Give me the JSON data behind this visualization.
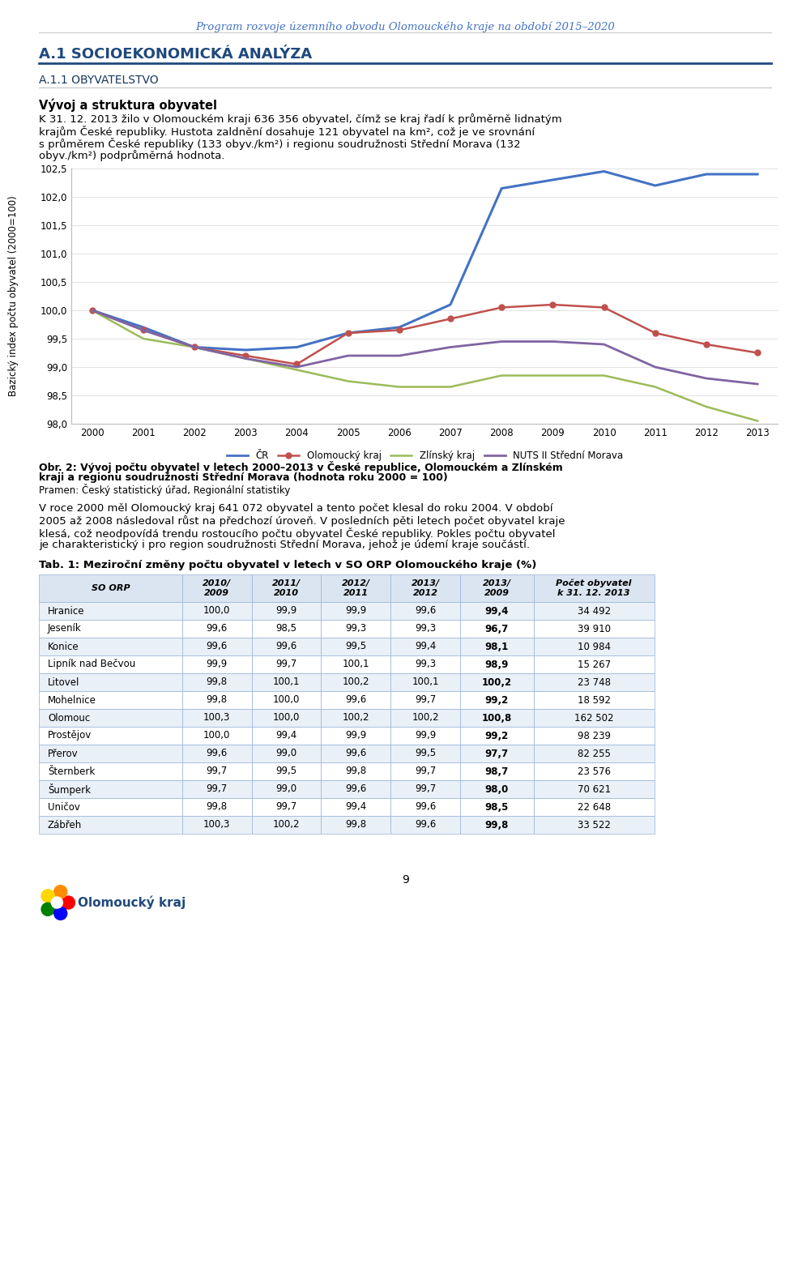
{
  "header_text": "Program rozvoje územního obvodu Olomouckého kraje na období 2015–2020",
  "section_title": "A.1 SOCIOEKONOMICKÁ ANALÝZA",
  "subsection_title": "A.1.1 OBYVATELSTVO",
  "bold_heading": "Vývoj a struktura obyvatel",
  "para1_lines": [
    "K 31. 12. 2013 žilo v Olomouckém kraji 636 356 obyvatel, čímž se kraj řadí k průměrně lidnatým",
    "krajům České republiky. Hustota zaldnění dosahuje 121 obyvatel na km², což je ve srovnání",
    "s průměrem České republiky (133 obyv./km²) i regionu soudružnosti Střední Morava (132",
    "obyv./km²) podprůměrná hodnota."
  ],
  "years": [
    2000,
    2001,
    2002,
    2003,
    2004,
    2005,
    2006,
    2007,
    2008,
    2009,
    2010,
    2011,
    2012,
    2013
  ],
  "cr": [
    100.0,
    99.7,
    99.35,
    99.3,
    99.35,
    99.6,
    99.7,
    100.1,
    102.15,
    102.3,
    102.45,
    102.2,
    102.4,
    102.4
  ],
  "olomoucky": [
    100.0,
    99.65,
    99.35,
    99.2,
    99.05,
    99.6,
    99.65,
    99.85,
    100.05,
    100.1,
    100.05,
    99.6,
    99.4,
    99.25
  ],
  "zlinsky": [
    100.0,
    99.5,
    99.35,
    99.15,
    98.95,
    98.75,
    98.65,
    98.65,
    98.85,
    98.85,
    98.85,
    98.65,
    98.3,
    98.05
  ],
  "nuts": [
    100.0,
    99.65,
    99.35,
    99.15,
    99.0,
    99.2,
    99.2,
    99.35,
    99.45,
    99.45,
    99.4,
    99.0,
    98.8,
    98.7
  ],
  "cr_color": "#4472C4",
  "olomoucky_color": "#C0504D",
  "zlinsky_color": "#9BBB59",
  "nuts_color": "#8064A2",
  "ylim": [
    98.0,
    102.5
  ],
  "yticks": [
    98.0,
    98.5,
    99.0,
    99.5,
    100.0,
    100.5,
    101.0,
    101.5,
    102.0,
    102.5
  ],
  "ylabel": "Bazický index počtu obyvatel (2000=100)",
  "caption_bold": "Obr. 2: Vývoj počtu obyvatel v letech 2000–2013 v České republice, Olomouckém a Zlínském",
  "caption_bold2": "kraji a regionu soudružnosti Střední Morava (hodnota roku 2000 = 100)",
  "caption_normal": "Pramen: Český statistický úřad, Regionální statistiky",
  "para2_lines": [
    "V roce 2000 měl Olomoucký kraj 641 072 obyvatel a tento počet klesal do roku 2004. V období",
    "2005 až 2008 následoval růst na předchozí úroveň. V posledních pěti letech počet obyvatel kraje",
    "klesá, což neodpovídá trendu rostoucího počtu obyvatel České republiky. Pokles počtu obyvatel",
    "je charakteristický i pro region soudružnosti Střední Morava, jehož je údemí kraje součástí."
  ],
  "table_title": "Tab. 1: Meziroční změny počtu obyvatel v letech v SO ORP Olomouckého kraje (%)",
  "table_headers": [
    "SO ORP",
    "2010/\n2009",
    "2011/\n2010",
    "2012/\n2011",
    "2013/\n2012",
    "2013/\n2009",
    "Počet obyvatel\nk 31. 12. 2013"
  ],
  "table_rows": [
    [
      "Hranice",
      "100,0",
      "99,9",
      "99,9",
      "99,6",
      "99,4",
      "34 492"
    ],
    [
      "Jeseník",
      "99,6",
      "98,5",
      "99,3",
      "99,3",
      "96,7",
      "39 910"
    ],
    [
      "Konice",
      "99,6",
      "99,6",
      "99,5",
      "99,4",
      "98,1",
      "10 984"
    ],
    [
      "Lipník nad Bečvou",
      "99,9",
      "99,7",
      "100,1",
      "99,3",
      "98,9",
      "15 267"
    ],
    [
      "Litovel",
      "99,8",
      "100,1",
      "100,2",
      "100,1",
      "100,2",
      "23 748"
    ],
    [
      "Mohelnice",
      "99,8",
      "100,0",
      "99,6",
      "99,7",
      "99,2",
      "18 592"
    ],
    [
      "Olomouc",
      "100,3",
      "100,0",
      "100,2",
      "100,2",
      "100,8",
      "162 502"
    ],
    [
      "Prostějov",
      "100,0",
      "99,4",
      "99,9",
      "99,9",
      "99,2",
      "98 239"
    ],
    [
      "Přerov",
      "99,6",
      "99,0",
      "99,6",
      "99,5",
      "97,7",
      "82 255"
    ],
    [
      "Šternberk",
      "99,7",
      "99,5",
      "99,8",
      "99,7",
      "98,7",
      "23 576"
    ],
    [
      "Šumperk",
      "99,7",
      "99,0",
      "99,6",
      "99,7",
      "98,0",
      "70 621"
    ],
    [
      "Uničov",
      "99,8",
      "99,7",
      "99,4",
      "99,6",
      "98,5",
      "22 648"
    ],
    [
      "Zábřeh",
      "100,3",
      "100,2",
      "99,8",
      "99,6",
      "99,8",
      "33 522"
    ]
  ],
  "page_number": "9",
  "logo_text": "Olomoucký kraj",
  "section_color": "#1F497D",
  "subsection_color": "#17375E",
  "table_header_bg": "#DBE5F1",
  "table_row_even_bg": "#EAF0F8",
  "table_row_odd_bg": "#FFFFFF",
  "table_border_color": "#95B3D7"
}
